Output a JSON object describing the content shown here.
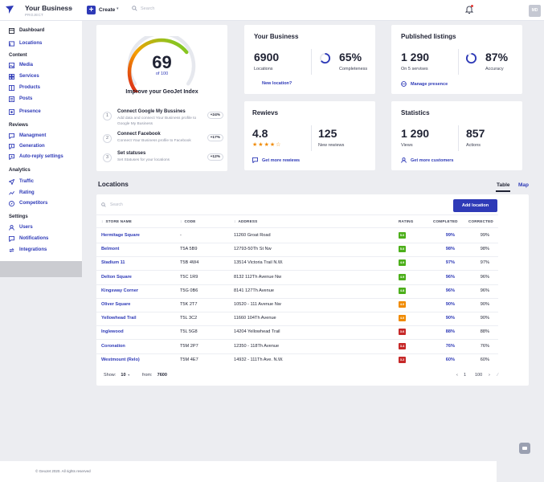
{
  "topbar": {
    "brand_name": "Your Business",
    "brand_sub": "PROJECT",
    "create_label": "Create",
    "search_placeholder": "Search",
    "avatar_initials": "MD"
  },
  "sidebar": {
    "dashboard": "Dashboard",
    "locations": "Locations",
    "content_head": "Content",
    "media": "Media",
    "services": "Services",
    "products": "Products",
    "posts": "Posts",
    "presence": "Presence",
    "reviews_head": "Reviews",
    "managment": "Managment",
    "generation": "Generation",
    "auto_reply": "Auto-reply settings",
    "analytics_head": "Analytics",
    "traffic": "Traffic",
    "rating": "Rating",
    "competitors": "Competitors",
    "settings_head": "Settings",
    "users": "Users",
    "notifications": "Notifications",
    "integrations": "Integrations"
  },
  "index_card": {
    "score": "69",
    "of_label": "of 100",
    "score_value": 69,
    "score_max": 100,
    "title": "Improve your GeoJet Index",
    "steps": [
      {
        "num": "1",
        "title": "Connect Google My Bussines",
        "desc": "Add data and connect Your Business profile to Google My Business",
        "pill": "+24%"
      },
      {
        "num": "2",
        "title": "Connect Facebook",
        "desc": "Connect Your Business profile to Facebook",
        "pill": "+17%"
      },
      {
        "num": "3",
        "title": "Set statuses",
        "desc": "Set Statuses for your locations",
        "pill": "+12%"
      }
    ]
  },
  "business_card": {
    "title": "Your Business",
    "locations_num": "6900",
    "locations_lbl": "Locations",
    "completeness_num": "65%",
    "completeness_lbl": "Completeness",
    "completeness_value": 65,
    "link": "New location?"
  },
  "listings_card": {
    "title": "Published listings",
    "num": "1 290",
    "lbl": "On 5 servises",
    "accuracy_num": "87%",
    "accuracy_lbl": "Accuracy",
    "accuracy_value": 87,
    "link": "Manage presence"
  },
  "reviews_card": {
    "title": "Rewievs",
    "rating_num": "4.8",
    "stars_filled": 4,
    "stars_total": 5,
    "count_num": "125",
    "count_lbl": "New rewiews",
    "link": "Get more rewiews"
  },
  "stats_card": {
    "title": "Statistics",
    "views_num": "1 290",
    "views_lbl": "Views",
    "actions_num": "857",
    "actions_lbl": "Actions",
    "link": "Get more customers"
  },
  "locations": {
    "title": "Locations",
    "tab_table": "Table",
    "tab_map": "Map",
    "search_placeholder": "Search",
    "add_button": "Add location",
    "headers": {
      "store": "STORE NAME",
      "code": "CODE",
      "address": "ADDRESS",
      "rating": "RATING",
      "completed": "COMPLETED",
      "corrected": "CORRECTED"
    },
    "rows": [
      {
        "store": "Hermitage Square",
        "code": "-",
        "address": "11260 Groat Road",
        "rating": "5.0",
        "completed": "99%",
        "corrected": "99%"
      },
      {
        "store": "Belmont",
        "code": "T5A 5B9",
        "address": "12793-50Th St Nw",
        "rating": "5.0",
        "completed": "98%",
        "corrected": "98%"
      },
      {
        "store": "Stadium 11",
        "code": "T5B 4W4",
        "address": "13514 Victoria Trail N.W.",
        "rating": "4.9",
        "completed": "97%",
        "corrected": "97%"
      },
      {
        "store": "Delton Square",
        "code": "T5C 1R9",
        "address": "8132 112Th Avenue Nw",
        "rating": "4.9",
        "completed": "96%",
        "corrected": "96%"
      },
      {
        "store": "Kingsway Corner",
        "code": "T5G 0B6",
        "address": "8141 127Th Avenue",
        "rating": "4.8",
        "completed": "96%",
        "corrected": "96%"
      },
      {
        "store": "Oliver Square",
        "code": "T5K 2T7",
        "address": "10520 - 111 Avenue Nw",
        "rating": "4.0",
        "completed": "90%",
        "corrected": "90%"
      },
      {
        "store": "Yellowhead Trail",
        "code": "T5L 3C2",
        "address": "11660 104Th Avenue",
        "rating": "4.0",
        "completed": "90%",
        "corrected": "90%"
      },
      {
        "store": "Inglewood",
        "code": "T5L 5G8",
        "address": "14204 Yellowhead Trail",
        "rating": "3.6",
        "completed": "88%",
        "corrected": "88%"
      },
      {
        "store": "Coronation",
        "code": "T5M 2P7",
        "address": "12350 - 118Th Avenue",
        "rating": "3.4",
        "completed": "76%",
        "corrected": "76%"
      },
      {
        "store": "Westmount (Relo)",
        "code": "T5M 4E7",
        "address": "14932 - 111Th Ave. N.W.",
        "rating": "3.2",
        "completed": "60%",
        "corrected": "60%"
      }
    ],
    "rating_colors": {
      "5.0": "#4caf1a",
      "4.9": "#4caf1a",
      "4.8": "#4caf1a",
      "4.0": "#f08a00",
      "3.6": "#c62828",
      "3.4": "#c62828",
      "3.2": "#c62828"
    },
    "show_label": "Show:",
    "show_value": "10",
    "from_label": "from:",
    "from_value": "7600",
    "page_current": "1",
    "page_total": "100"
  },
  "footer": "© GeoJet 2020. All rights reserved",
  "colors": {
    "accent": "#2e3ab7",
    "star": "#f08a00"
  }
}
